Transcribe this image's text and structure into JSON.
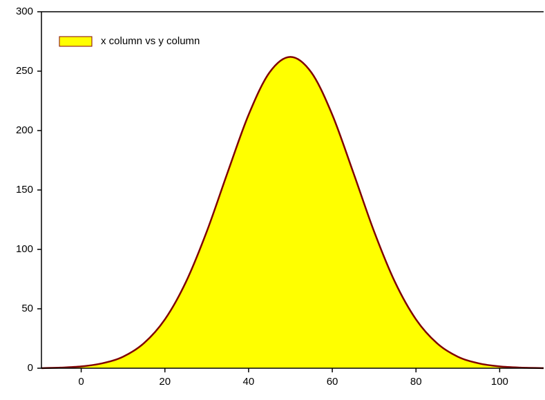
{
  "chart_data": {
    "type": "area",
    "x": [
      -9.5,
      -5,
      0,
      5,
      10,
      15,
      20,
      25,
      30,
      35,
      40,
      45,
      50,
      55,
      60,
      65,
      70,
      75,
      80,
      85,
      90,
      95,
      100,
      105,
      110.5
    ],
    "series": [
      {
        "name": "x column vs y column",
        "color": "#ffff00",
        "line_color": "#800000",
        "values": [
          0.1,
          0.5,
          1.5,
          4.1,
          9.7,
          21.1,
          41.1,
          72.4,
          115.0,
          164.9,
          213.3,
          248.9,
          262,
          248.9,
          213.3,
          164.9,
          115.0,
          72.4,
          41.1,
          21.1,
          9.7,
          4.1,
          1.5,
          0.5,
          0.1
        ]
      }
    ],
    "xlim": [
      -9.5,
      110.5
    ],
    "xticks": [
      0,
      20,
      40,
      60,
      80,
      100
    ],
    "ylim": [
      0,
      300
    ],
    "yticks": [
      0,
      50,
      100,
      150,
      200,
      250,
      300
    ],
    "grid": false,
    "legend": "upper left"
  }
}
